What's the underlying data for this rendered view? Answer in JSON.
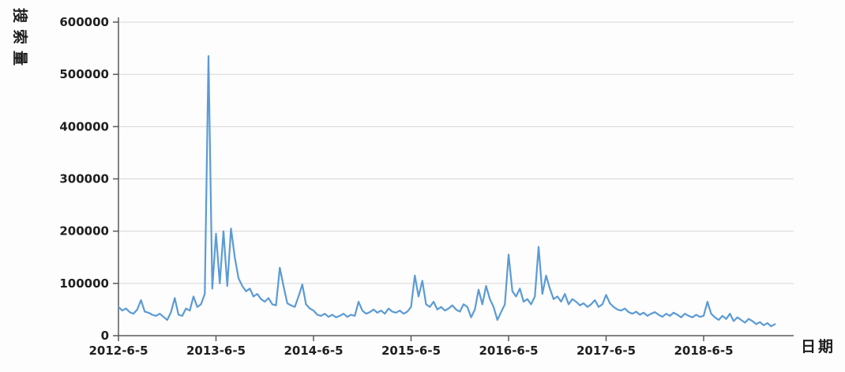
{
  "chart_data": {
    "type": "line",
    "title": "",
    "xlabel": "日期",
    "ylabel": "搜索量",
    "series_name": "搜索量",
    "line_color": "#5b9bd5",
    "grid": true,
    "legend": "none",
    "ylim": [
      0,
      600000
    ],
    "yticks": [
      0,
      100000,
      200000,
      300000,
      400000,
      500000,
      600000
    ],
    "ytick_labels": [
      "0",
      "100000",
      "200000",
      "300000",
      "400000",
      "500000",
      "600000"
    ],
    "x_tick_labels": [
      "2012-6-5",
      "2013-6-5",
      "2014-6-5",
      "2015-6-5",
      "2016-6-5",
      "2017-6-5",
      "2018-6-5"
    ],
    "x_tick_indices": [
      0,
      26,
      52,
      78,
      104,
      130,
      156
    ],
    "x_note": "values sampled at approximately bi-weekly intervals starting 2012-6-5; peak of 535000 occurs around May 2013",
    "values": [
      55000,
      48000,
      52000,
      45000,
      42000,
      50000,
      68000,
      46000,
      44000,
      40000,
      38000,
      42000,
      36000,
      30000,
      45000,
      72000,
      40000,
      38000,
      52000,
      48000,
      75000,
      55000,
      60000,
      80000,
      535000,
      90000,
      195000,
      100000,
      200000,
      95000,
      205000,
      150000,
      110000,
      95000,
      85000,
      90000,
      75000,
      80000,
      70000,
      65000,
      72000,
      60000,
      58000,
      130000,
      95000,
      62000,
      58000,
      55000,
      75000,
      98000,
      60000,
      52000,
      48000,
      40000,
      38000,
      42000,
      36000,
      40000,
      35000,
      38000,
      42000,
      36000,
      40000,
      38000,
      65000,
      48000,
      42000,
      45000,
      50000,
      44000,
      48000,
      42000,
      52000,
      46000,
      44000,
      48000,
      42000,
      46000,
      55000,
      115000,
      75000,
      105000,
      60000,
      55000,
      65000,
      50000,
      55000,
      48000,
      52000,
      58000,
      50000,
      46000,
      60000,
      55000,
      35000,
      50000,
      88000,
      60000,
      95000,
      70000,
      55000,
      30000,
      45000,
      60000,
      155000,
      85000,
      75000,
      90000,
      65000,
      70000,
      60000,
      75000,
      170000,
      80000,
      115000,
      90000,
      70000,
      75000,
      65000,
      80000,
      60000,
      70000,
      65000,
      58000,
      62000,
      55000,
      60000,
      68000,
      55000,
      60000,
      78000,
      62000,
      55000,
      50000,
      48000,
      52000,
      45000,
      42000,
      46000,
      40000,
      44000,
      38000,
      42000,
      45000,
      40000,
      36000,
      42000,
      38000,
      44000,
      40000,
      35000,
      42000,
      38000,
      35000,
      40000,
      36000,
      38000,
      65000,
      42000,
      35000,
      30000,
      38000,
      32000,
      42000,
      28000,
      35000,
      30000,
      25000,
      32000,
      28000,
      22000,
      26000,
      20000,
      24000,
      18000,
      22000
    ]
  }
}
